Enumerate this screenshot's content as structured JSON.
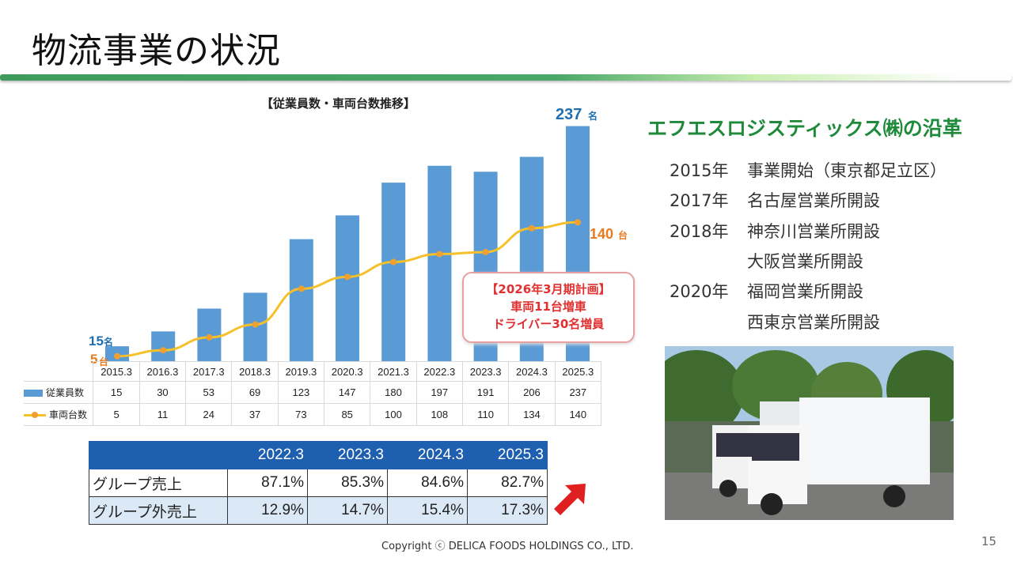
{
  "title": "物流事業の状況",
  "chart_data": {
    "type": "bar",
    "title": "【従業員数・車両台数推移】",
    "categories": [
      "2015.3",
      "2016.3",
      "2017.3",
      "2018.3",
      "2019.3",
      "2020.3",
      "2021.3",
      "2022.3",
      "2023.3",
      "2024.3",
      "2025.3"
    ],
    "series": [
      {
        "name": "従業員数",
        "type": "bar",
        "color": "#5b9bd5",
        "values": [
          15,
          30,
          53,
          69,
          123,
          147,
          180,
          197,
          191,
          206,
          237
        ]
      },
      {
        "name": "車両台数",
        "type": "line",
        "color": "#f5c02a",
        "values": [
          5,
          11,
          24,
          37,
          73,
          85,
          100,
          108,
          110,
          134,
          140
        ]
      }
    ],
    "annotations": {
      "emp_first": "15",
      "emp_last": "237",
      "emp_unit": "名",
      "veh_first": "5",
      "veh_last": "140",
      "veh_unit": "台"
    }
  },
  "plan": {
    "line1": "【2026年3月期計画】",
    "line2": "車両11台増車",
    "line3": "ドライバー30名増員"
  },
  "share_table": {
    "headers": [
      "",
      "2022.3",
      "2023.3",
      "2024.3",
      "2025.3"
    ],
    "rows": [
      {
        "label": "グループ売上",
        "values": [
          "87.1%",
          "85.3%",
          "84.6%",
          "82.7%"
        ]
      },
      {
        "label": "グループ外売上",
        "values": [
          "12.9%",
          "14.7%",
          "15.4%",
          "17.3%"
        ]
      }
    ]
  },
  "history": {
    "title": "エフエスロジスティックス㈱の沿革",
    "items": [
      {
        "year": "2015年",
        "text": "事業開始（東京都足立区）"
      },
      {
        "year": "2017年",
        "text": "名古屋営業所開設"
      },
      {
        "year": "2018年",
        "text": "神奈川営業所開設"
      },
      {
        "year": "",
        "text": "大阪営業所開設"
      },
      {
        "year": "2020年",
        "text": "福岡営業所開設"
      },
      {
        "year": "",
        "text": "西東京営業所開設"
      }
    ]
  },
  "footer": {
    "copyright": "Copyright ⓒ DELICA FOODS HOLDINGS CO., LTD.",
    "page": "15"
  }
}
